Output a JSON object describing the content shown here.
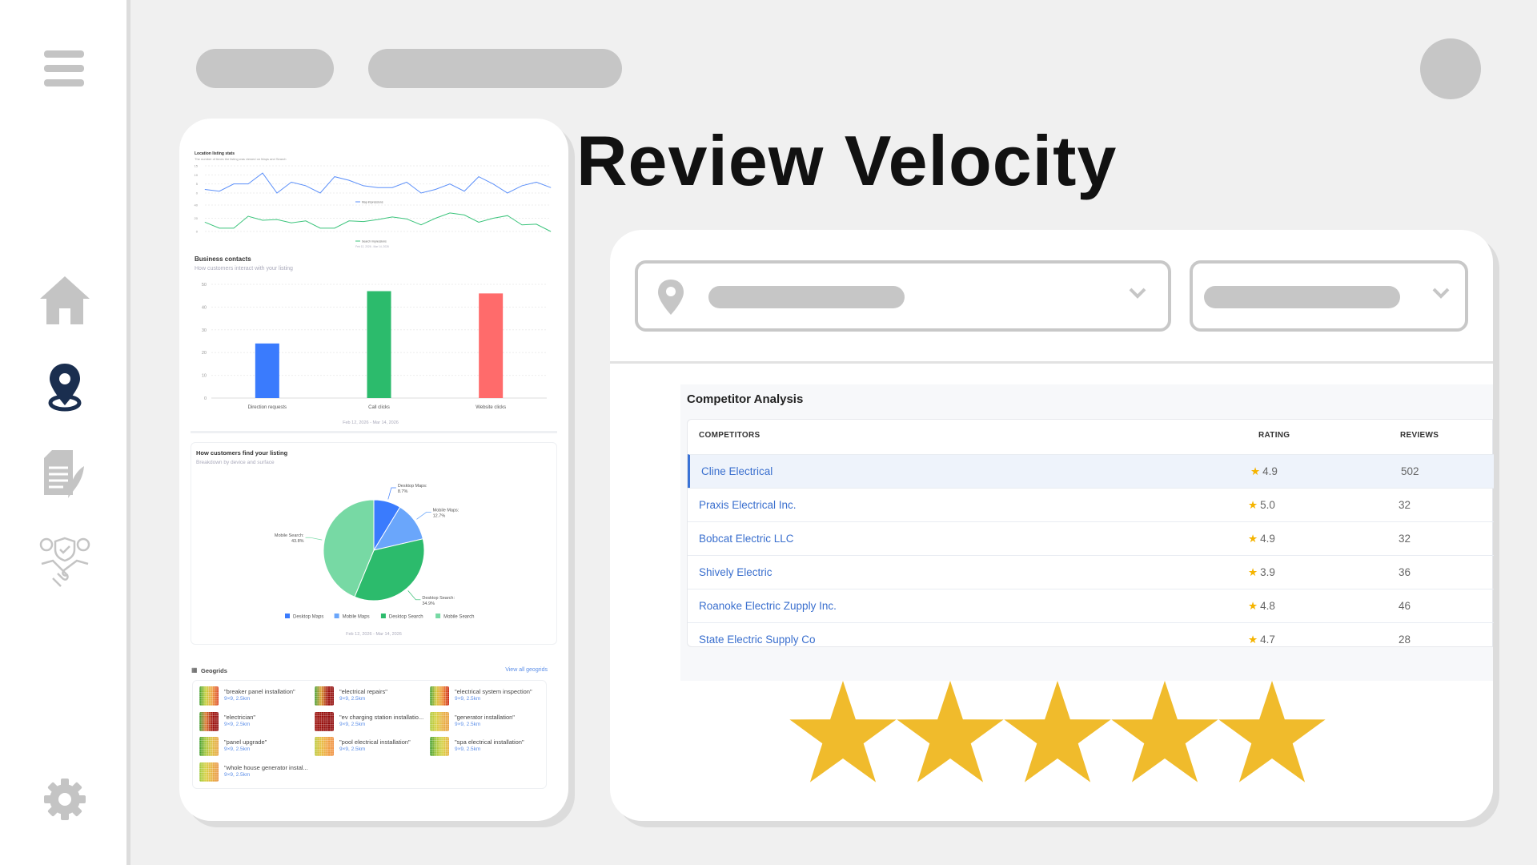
{
  "page": {
    "title": "Review Velocity"
  },
  "sidebar": {
    "items": [
      {
        "icon": "home-icon",
        "active": false
      },
      {
        "icon": "location-pin-icon",
        "active": true
      },
      {
        "icon": "document-quill-icon",
        "active": false
      },
      {
        "icon": "handshake-shield-icon",
        "active": false
      },
      {
        "icon": "gear-icon",
        "active": false
      }
    ],
    "active_color": "#1a2e4f",
    "inactive_color": "#c4c4c4"
  },
  "competitor_analysis": {
    "title": "Competitor Analysis",
    "columns": [
      "COMPETITORS",
      "RATING",
      "REVIEWS"
    ],
    "rows": [
      {
        "name": "Cline Electrical",
        "rating": "4.9",
        "reviews": "502",
        "selected": true
      },
      {
        "name": "Praxis Electrical Inc.",
        "rating": "5.0",
        "reviews": "32"
      },
      {
        "name": "Bobcat Electric LLC",
        "rating": "4.9",
        "reviews": "32"
      },
      {
        "name": "Shively Electric",
        "rating": "3.9",
        "reviews": "36"
      },
      {
        "name": "Roanoke Electric Zupply Inc.",
        "rating": "4.8",
        "reviews": "46"
      },
      {
        "name": "State Electric Supply Co",
        "rating": "4.7",
        "reviews": "28"
      }
    ],
    "star_glyph": "★"
  },
  "big_stars": {
    "count": 5,
    "filled": 5,
    "color": "#f0bb2c"
  },
  "preview": {
    "location_stats": {
      "title": "Location listing stats",
      "subtitle": "The number of times the listing was viewed on Maps and Search",
      "date_range": "Feb 12, 2026 - Mar 14, 2026"
    },
    "business_contacts": {
      "title": "Business contacts",
      "subtitle": "How customers interact with your listing",
      "date_range": "Feb 12, 2026 - Mar 14, 2026"
    },
    "find_listing": {
      "title": "How customers find your listing",
      "subtitle": "Breakdown by device and surface",
      "date_range": "Feb 12, 2026 - Mar 14, 2026"
    },
    "geogrids": {
      "title": "Geogrids",
      "view_all": "View all geogrids",
      "items": [
        {
          "name": "\"breaker panel installation\"",
          "meta": "9×9, 2.5km",
          "colors": [
            "#3a9a2a",
            "#c8d23a",
            "#f0a040",
            "#d83a1a"
          ]
        },
        {
          "name": "\"electrical repairs\"",
          "meta": "9×9, 2.5km",
          "colors": [
            "#3a9a2a",
            "#e0a030",
            "#a0100a",
            "#8e0a0a"
          ]
        },
        {
          "name": "\"electrical system inspection\"",
          "meta": "9×9, 2.5km",
          "colors": [
            "#3a9a2a",
            "#d8c83a",
            "#f08a30",
            "#c8200e"
          ]
        },
        {
          "name": "\"electrician\"",
          "meta": "9×9, 2.5km",
          "colors": [
            "#3a9a2a",
            "#e07a30",
            "#a0100a",
            "#900a0a"
          ]
        },
        {
          "name": "\"ev charging station installatio...",
          "meta": "9×9, 2.5km",
          "colors": [
            "#9a0e0a",
            "#9a0e0a",
            "#900a0a",
            "#900a0a"
          ]
        },
        {
          "name": "\"generator installation\"",
          "meta": "9×9, 2.5km",
          "colors": [
            "#a8c83a",
            "#d8d040",
            "#e8b040",
            "#e8a040"
          ]
        },
        {
          "name": "\"panel upgrade\"",
          "meta": "9×9, 2.5km",
          "colors": [
            "#3a9a2a",
            "#a8c83a",
            "#e0c040",
            "#e8a040"
          ]
        },
        {
          "name": "\"pool electrical installation\"",
          "meta": "9×9, 2.5km",
          "colors": [
            "#b8c83a",
            "#e8c040",
            "#f0a040",
            "#f09040"
          ]
        },
        {
          "name": "\"spa electrical installation\"",
          "meta": "9×9, 2.5km",
          "colors": [
            "#3a9a2a",
            "#a8c83a",
            "#d8d040",
            "#e8b040"
          ]
        },
        {
          "name": "\"whole house generator instal...",
          "meta": "9×9, 2.5km",
          "colors": [
            "#9ac83a",
            "#d8d040",
            "#e8b040",
            "#e89040"
          ]
        }
      ]
    }
  },
  "chart_data": [
    {
      "type": "line",
      "series": [
        {
          "name": "Map impressions",
          "color": "#5b8ff9",
          "values": [
            2,
            1,
            5,
            5,
            11,
            0,
            6,
            4,
            0,
            9,
            7,
            4,
            3,
            3,
            6,
            0,
            2,
            5,
            1,
            9,
            5,
            0,
            4,
            6,
            3
          ]
        }
      ],
      "yticks": [
        "0",
        "5",
        "10",
        "15"
      ],
      "ylim": [
        0,
        15
      ],
      "grid": true,
      "legend": "bottom"
    },
    {
      "type": "line",
      "series": [
        {
          "name": "Search impressions",
          "color": "#3cc47c",
          "values": [
            14,
            5,
            5,
            23,
            17,
            18,
            13,
            16,
            5,
            5,
            16,
            15,
            18,
            22,
            19,
            10,
            20,
            28,
            25,
            14,
            20,
            24,
            10,
            11,
            0
          ]
        }
      ],
      "yticks": [
        "0",
        "20",
        "40"
      ],
      "ylim": [
        0,
        40
      ],
      "grid": true,
      "legend": "bottom"
    },
    {
      "type": "bar",
      "categories": [
        "Direction requests",
        "Call clicks",
        "Website clicks"
      ],
      "values": [
        24,
        47,
        46
      ],
      "colors": [
        "#3a7bfd",
        "#2cbb6c",
        "#ff6b6b"
      ],
      "yticks": [
        "0",
        "10",
        "20",
        "30",
        "40",
        "50"
      ],
      "ylim": [
        0,
        50
      ],
      "grid": true
    },
    {
      "type": "pie",
      "slices": [
        {
          "label": "Desktop Maps",
          "value": 8.7,
          "text": "8.7%",
          "color": "#3a7bfd"
        },
        {
          "label": "Mobile Maps",
          "value": 12.7,
          "text": "12.7%",
          "color": "#6aa6fb"
        },
        {
          "label": "Desktop Search",
          "value": 34.9,
          "text": "34.9%",
          "color": "#2cbb6c"
        },
        {
          "label": "Mobile Search",
          "value": 43.8,
          "text": "43.8%",
          "color": "#77d9a4"
        }
      ],
      "legend": "bottom"
    }
  ]
}
